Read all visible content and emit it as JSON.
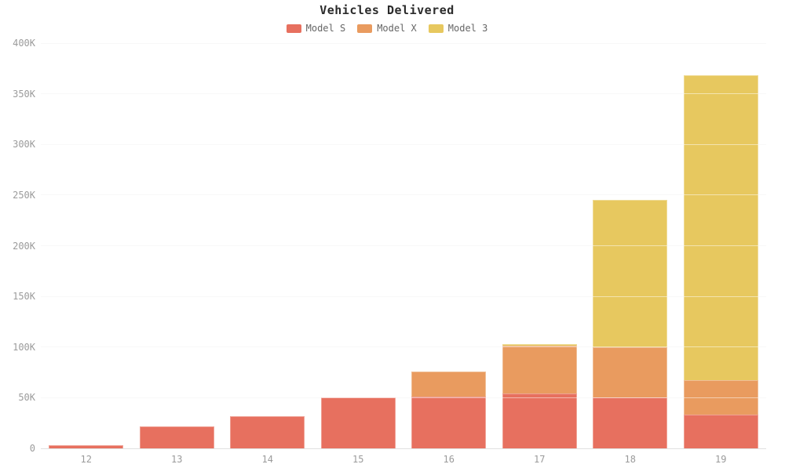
{
  "chart_data": {
    "type": "bar",
    "stacked": true,
    "title": "Vehicles Delivered",
    "units": "thousands_of_vehicles",
    "categories": [
      "12",
      "13",
      "14",
      "15",
      "16",
      "17",
      "18",
      "19"
    ],
    "series": [
      {
        "name": "Model S",
        "color": "#e7705f",
        "values": [
          3,
          22,
          32,
          50,
          51,
          54,
          50,
          33
        ]
      },
      {
        "name": "Model X",
        "color": "#e99b5f",
        "values": [
          0,
          0,
          0,
          0,
          25,
          47,
          50,
          34
        ]
      },
      {
        "name": "Model 3",
        "color": "#e7c85f",
        "values": [
          0,
          0,
          0,
          0,
          0,
          2,
          145,
          301
        ]
      }
    ],
    "stack_totals": [
      3,
      22,
      32,
      50,
      76,
      103,
      245,
      368
    ],
    "ylim": [
      0,
      400
    ],
    "ytick_labels": [
      "0",
      "50K",
      "100K",
      "150K",
      "200K",
      "250K",
      "300K",
      "350K",
      "400K"
    ],
    "ytick_values": [
      0,
      50,
      100,
      150,
      200,
      250,
      300,
      350,
      400
    ],
    "xlabel": "",
    "ylabel": "",
    "grid": true,
    "legend_position": "top"
  },
  "colors": {
    "background": "#ffffff",
    "gridline": "#f0f0f0",
    "baseline": "#e0e0e0",
    "tick_label": "#9b9b9b",
    "legend_text": "#666666",
    "title_text": "#2b2b2b"
  }
}
